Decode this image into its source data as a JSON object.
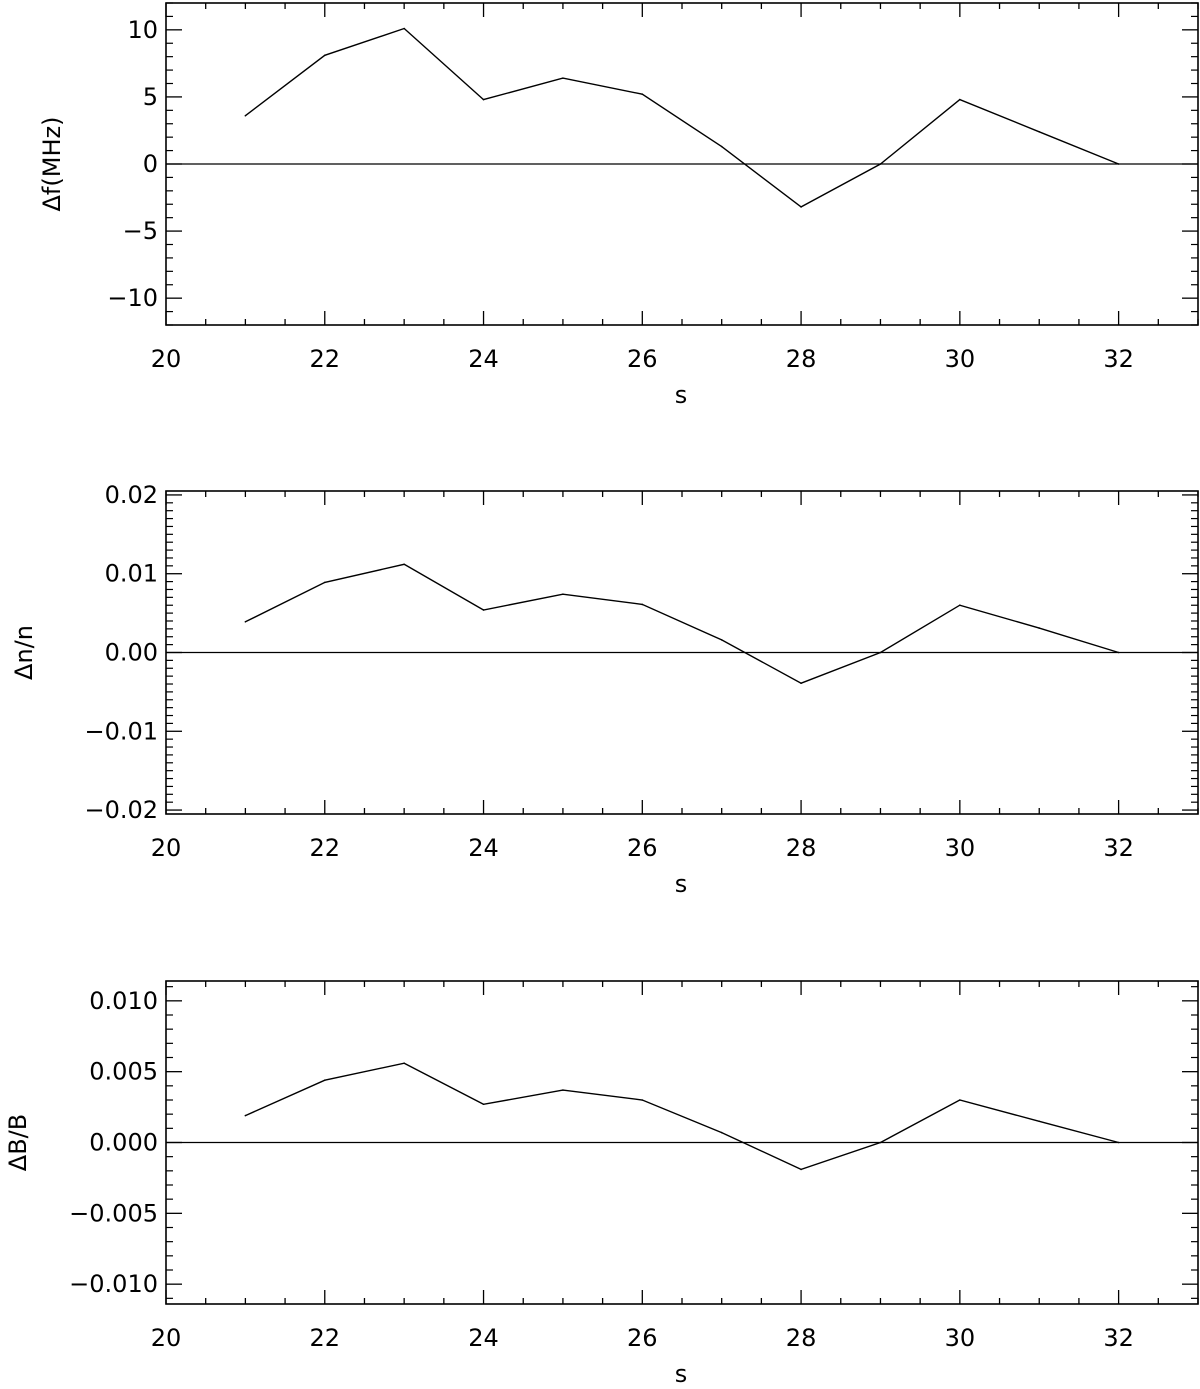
{
  "chart_data": [
    {
      "type": "line",
      "xlabel": "s",
      "ylabel": "Δf(MHz)",
      "xlim": [
        20,
        33
      ],
      "ylim": [
        -12,
        12
      ],
      "xticks": [
        20,
        22,
        24,
        26,
        28,
        30,
        32
      ],
      "xtick_labels": [
        "20",
        "22",
        "24",
        "26",
        "28",
        "30",
        "32"
      ],
      "yticks": [
        -10,
        -5,
        0,
        5,
        10
      ],
      "ytick_labels": [
        "−10",
        "−5",
        "0",
        "5",
        "10"
      ],
      "y_minor_step": 1,
      "reference_line": 0,
      "grid": false,
      "x": [
        21,
        22,
        23,
        24,
        25,
        26,
        27,
        28,
        29,
        30,
        31,
        32
      ],
      "y": [
        3.6,
        8.1,
        10.1,
        4.8,
        6.4,
        5.2,
        1.3,
        -3.2,
        0.0,
        4.8,
        2.4,
        0.0
      ]
    },
    {
      "type": "line",
      "xlabel": "s",
      "ylabel": "Δn/n",
      "xlim": [
        20,
        33
      ],
      "ylim": [
        -0.0205,
        0.0205
      ],
      "xticks": [
        20,
        22,
        24,
        26,
        28,
        30,
        32
      ],
      "xtick_labels": [
        "20",
        "22",
        "24",
        "26",
        "28",
        "30",
        "32"
      ],
      "yticks": [
        -0.02,
        -0.01,
        0.0,
        0.01,
        0.02
      ],
      "ytick_labels": [
        "−0.02",
        "−0.01",
        "0.00",
        "0.01",
        "0.02"
      ],
      "y_minor_step": 0.001,
      "reference_line": 0,
      "grid": false,
      "x": [
        21,
        22,
        23,
        24,
        25,
        26,
        27,
        28,
        29,
        30,
        31,
        32
      ],
      "y": [
        0.0039,
        0.0089,
        0.0112,
        0.0054,
        0.0074,
        0.0061,
        0.0016,
        -0.0039,
        0.0,
        0.006,
        0.0031,
        0.0
      ]
    },
    {
      "type": "line",
      "xlabel": "s",
      "ylabel": "ΔB/B",
      "xlim": [
        20,
        33
      ],
      "ylim": [
        -0.0114,
        0.0114
      ],
      "xticks": [
        20,
        22,
        24,
        26,
        28,
        30,
        32
      ],
      "xtick_labels": [
        "20",
        "22",
        "24",
        "26",
        "28",
        "30",
        "32"
      ],
      "yticks": [
        -0.01,
        -0.005,
        0.0,
        0.005,
        0.01
      ],
      "ytick_labels": [
        "−0.010",
        "−0.005",
        "0.000",
        "0.005",
        "0.010"
      ],
      "y_minor_step": 0.001,
      "reference_line": 0,
      "grid": false,
      "x": [
        21,
        22,
        23,
        24,
        25,
        26,
        27,
        28,
        29,
        30,
        31,
        32
      ],
      "y": [
        0.0019,
        0.0044,
        0.0056,
        0.0027,
        0.0037,
        0.003,
        0.0007,
        -0.0019,
        0.0,
        0.003,
        0.0015,
        0.0
      ]
    }
  ]
}
